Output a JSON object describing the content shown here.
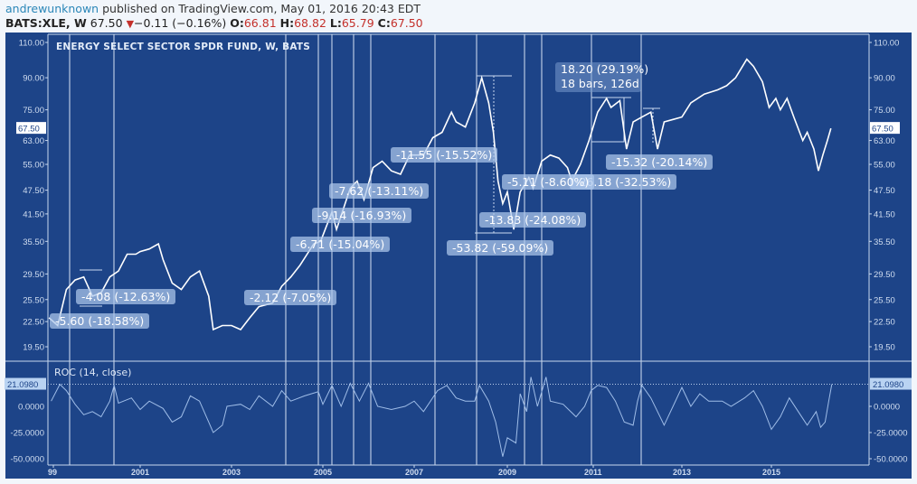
{
  "header": {
    "author": "andrewunknown",
    "published": "published on TradingView.com, May 01, 2016 20:43 EDT",
    "symbol": "BATS:XLE, W",
    "last": "67.50",
    "change": "−0.11 (−0.16%)",
    "change_direction_icon": "triangle-down-icon",
    "o_label": "O:",
    "o": "66.81",
    "h_label": "H:",
    "h": "68.82",
    "l_label": "L:",
    "l": "65.79",
    "c_label": "C:",
    "c": "67.50"
  },
  "colors": {
    "background": "#1d4488",
    "price_line": "#ffffff",
    "roc_line": "#9fbde8",
    "down": "#c4302b",
    "author": "#2b87b8"
  },
  "chart_data": [
    {
      "type": "line",
      "title": "ENERGY SELECT SECTOR SPDR FUND, W, BATS",
      "yscale": "log",
      "ylim": [
        19.5,
        110
      ],
      "yticks": [
        "110.00",
        "90.00",
        "75.00",
        "63.00",
        "55.00",
        "47.50",
        "41.50",
        "35.50",
        "29.50",
        "25.50",
        "22.50",
        "19.50"
      ],
      "last_value_label": "67.50",
      "xticks": [
        "99",
        "2001",
        "2003",
        "2005",
        "2007",
        "2009",
        "2011",
        "2013",
        "2015"
      ],
      "x": [
        1998.9,
        1999.1,
        1999.3,
        1999.5,
        1999.7,
        1999.9,
        2000.1,
        2000.3,
        2000.5,
        2000.7,
        2000.9,
        2001.0,
        2001.2,
        2001.4,
        2001.5,
        2001.7,
        2001.9,
        2002.1,
        2002.3,
        2002.5,
        2002.6,
        2002.8,
        2003.0,
        2003.2,
        2003.4,
        2003.6,
        2003.9,
        2004.1,
        2004.3,
        2004.5,
        2004.8,
        2004.95,
        2005.2,
        2005.3,
        2005.6,
        2005.75,
        2005.9,
        2006.1,
        2006.3,
        2006.5,
        2006.7,
        2006.9,
        2007.2,
        2007.4,
        2007.6,
        2007.8,
        2007.9,
        2008.1,
        2008.3,
        2008.45,
        2008.6,
        2008.7,
        2008.8,
        2008.9,
        2009.0,
        2009.15,
        2009.3,
        2009.5,
        2009.6,
        2009.8,
        2010.0,
        2010.2,
        2010.4,
        2010.5,
        2010.7,
        2010.9,
        2011.1,
        2011.3,
        2011.4,
        2011.6,
        2011.75,
        2011.9,
        2012.1,
        2012.3,
        2012.45,
        2012.6,
        2012.8,
        2013.0,
        2013.2,
        2013.5,
        2013.8,
        2014.0,
        2014.2,
        2014.45,
        2014.6,
        2014.8,
        2014.95,
        2015.1,
        2015.2,
        2015.35,
        2015.5,
        2015.7,
        2015.8,
        2015.95,
        2016.05,
        2016.15,
        2016.25,
        2016.33
      ],
      "values": [
        23,
        22,
        27,
        28.5,
        29,
        26,
        26.5,
        29,
        30,
        33,
        33,
        33.5,
        34,
        35,
        32,
        28,
        27,
        29,
        30,
        26,
        21.5,
        22,
        22,
        21.5,
        23,
        24.5,
        25,
        27.5,
        29,
        31,
        35,
        35.5,
        42,
        38,
        48,
        50,
        45,
        54,
        56,
        53,
        52,
        58,
        58,
        64,
        66,
        74,
        70,
        68,
        78,
        90,
        78,
        66,
        50,
        44,
        47,
        38,
        47,
        51,
        48,
        56,
        58,
        57,
        54,
        50,
        55,
        63,
        74,
        80,
        76,
        79,
        60,
        70,
        72,
        74,
        60,
        70,
        71,
        72,
        78,
        82,
        84,
        86,
        90,
        100,
        96,
        88,
        76,
        80,
        75,
        80,
        72,
        63,
        66,
        60,
        53,
        58,
        63,
        67.5
      ],
      "measurements": [
        "-5.60 (-18.58%)",
        "-4.08 (-12.63%)",
        "-2.12 (-7.05%)",
        "-6.71 (-15.04%)",
        "-9.14 (-16.93%)",
        "-7.62 (-13.11%)",
        "-11.55 (-15.52%)",
        "-53.82 (-59.09%)",
        "-13.83 (-24.08%)",
        "-26.18 (-32.53%)",
        "-5.11 (-8.60%)",
        "-15.32 (-20.14%)"
      ],
      "gain_measurement": {
        "line1": "18.20 (29.19%)",
        "line2": "18 bars, 126d"
      }
    },
    {
      "type": "line",
      "title": "ROC (14, close)",
      "ylim": [
        -50,
        30
      ],
      "yticks": [
        "0.0000",
        "-25.0000",
        "-50.0000"
      ],
      "last_value_label": "21.0980",
      "x": [
        1998.95,
        1999.15,
        1999.3,
        1999.5,
        1999.7,
        1999.9,
        2000.1,
        2000.3,
        2000.4,
        2000.5,
        2000.8,
        2001.0,
        2001.2,
        2001.5,
        2001.7,
        2001.9,
        2002.1,
        2002.3,
        2002.5,
        2002.6,
        2002.8,
        2002.9,
        2003.2,
        2003.4,
        2003.6,
        2003.9,
        2004.1,
        2004.3,
        2004.6,
        2004.9,
        2005.0,
        2005.2,
        2005.4,
        2005.6,
        2005.8,
        2006.0,
        2006.2,
        2006.5,
        2006.8,
        2007.0,
        2007.2,
        2007.5,
        2007.7,
        2007.9,
        2008.1,
        2008.3,
        2008.4,
        2008.6,
        2008.75,
        2008.9,
        2009.0,
        2009.2,
        2009.3,
        2009.45,
        2009.55,
        2009.7,
        2009.9,
        2010.0,
        2010.3,
        2010.6,
        2010.8,
        2010.95,
        2011.1,
        2011.3,
        2011.5,
        2011.7,
        2011.9,
        2012.0,
        2012.1,
        2012.3,
        2012.6,
        2012.8,
        2013.0,
        2013.2,
        2013.4,
        2013.6,
        2013.9,
        2014.1,
        2014.4,
        2014.6,
        2014.8,
        2015.0,
        2015.2,
        2015.4,
        2015.6,
        2015.8,
        2016.0,
        2016.1,
        2016.2,
        2016.28,
        2016.35
      ],
      "values": [
        5,
        21,
        15,
        2,
        -8,
        -5,
        -10,
        5,
        20,
        3,
        8,
        -3,
        5,
        -2,
        -15,
        -10,
        10,
        5,
        -15,
        -25,
        -18,
        0,
        2,
        -3,
        10,
        0,
        15,
        5,
        10,
        14,
        2,
        20,
        0,
        22,
        5,
        22,
        0,
        -3,
        0,
        5,
        -5,
        15,
        20,
        8,
        5,
        5,
        20,
        5,
        -15,
        -48,
        -30,
        -35,
        12,
        -5,
        28,
        0,
        28,
        5,
        2,
        -10,
        0,
        15,
        20,
        18,
        5,
        -15,
        -18,
        5,
        20,
        8,
        -18,
        0,
        18,
        0,
        12,
        5,
        5,
        0,
        8,
        15,
        0,
        -22,
        -10,
        8,
        -5,
        -18,
        -5,
        -20,
        -15,
        5,
        21.1
      ]
    }
  ]
}
